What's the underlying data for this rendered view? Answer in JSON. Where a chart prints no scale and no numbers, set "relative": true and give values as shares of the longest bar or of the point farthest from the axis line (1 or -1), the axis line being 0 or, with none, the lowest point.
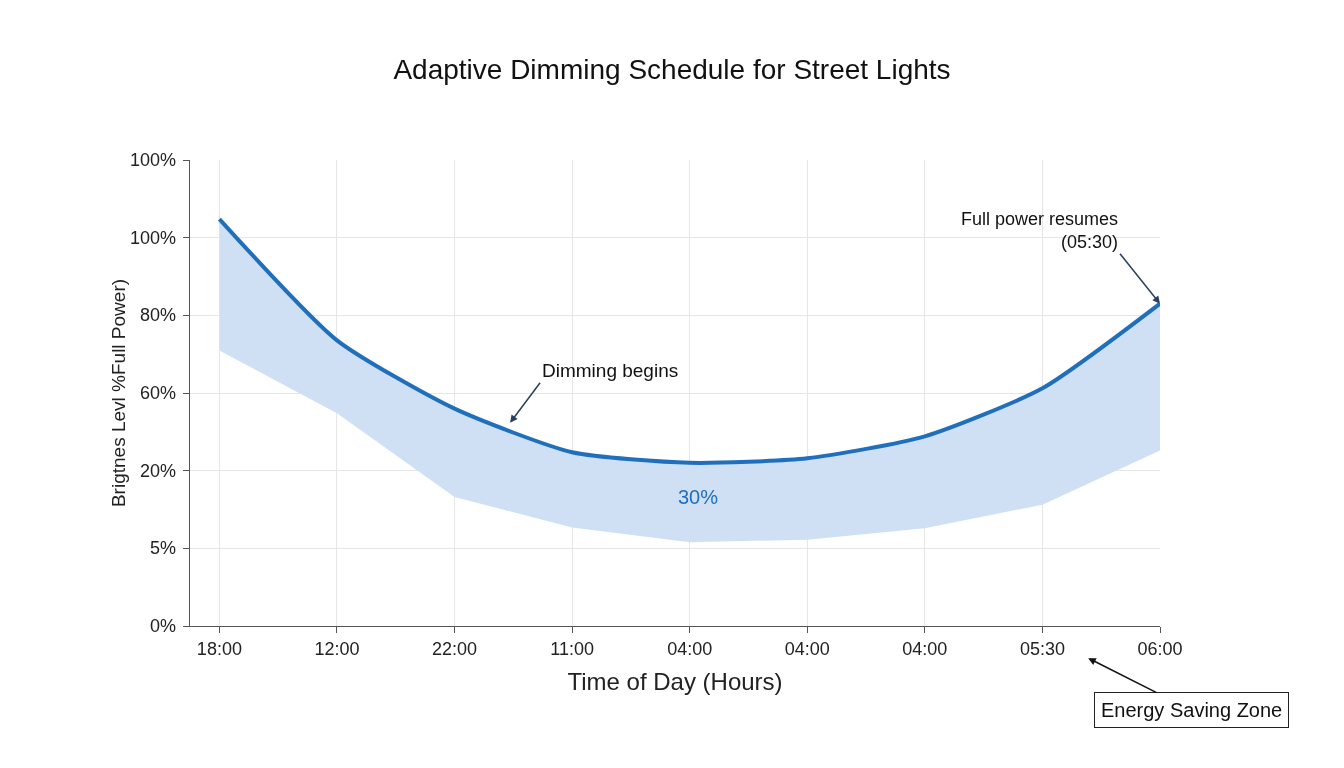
{
  "chart_data": {
    "type": "line",
    "title": "Adaptive Dimming Schedule for Street Lights",
    "xlabel": "Time of Day (Hours)",
    "ylabel": "Brigtnes Levl %Full Power)",
    "relative": true,
    "categories": [
      "18:00",
      "12:00",
      "22:00",
      "11:00",
      "04:00",
      "04:00",
      "04:00",
      "05:30",
      "06:00"
    ],
    "series": [
      {
        "color": "#1f6fba",
        "values": [
          1,
          0.702,
          0.534,
          0.427,
          0.401,
          0.412,
          0.466,
          0.584,
          0.792
        ],
        "lower": [
          0.677,
          0.523,
          0.317,
          0.242,
          0.206,
          0.212,
          0.24,
          0.298,
          0.431
        ],
        "upper": [
          1,
          0.702,
          0.534,
          0.427,
          0.401,
          0.412,
          0.466,
          0.584,
          0.792
        ]
      }
    ],
    "annotations": [
      "0%",
      "5%",
      "20%",
      "60%",
      "80%",
      "100%",
      "100%",
      "Dimming begins",
      {
        "text": "Full power resumes\n(05:30)",
        "x": "06:00",
        "y": 0.792
      },
      "30%",
      "Energy Saving Zone"
    ],
    "grid": true,
    "marker": "none",
    "line_style": "solid"
  }
}
